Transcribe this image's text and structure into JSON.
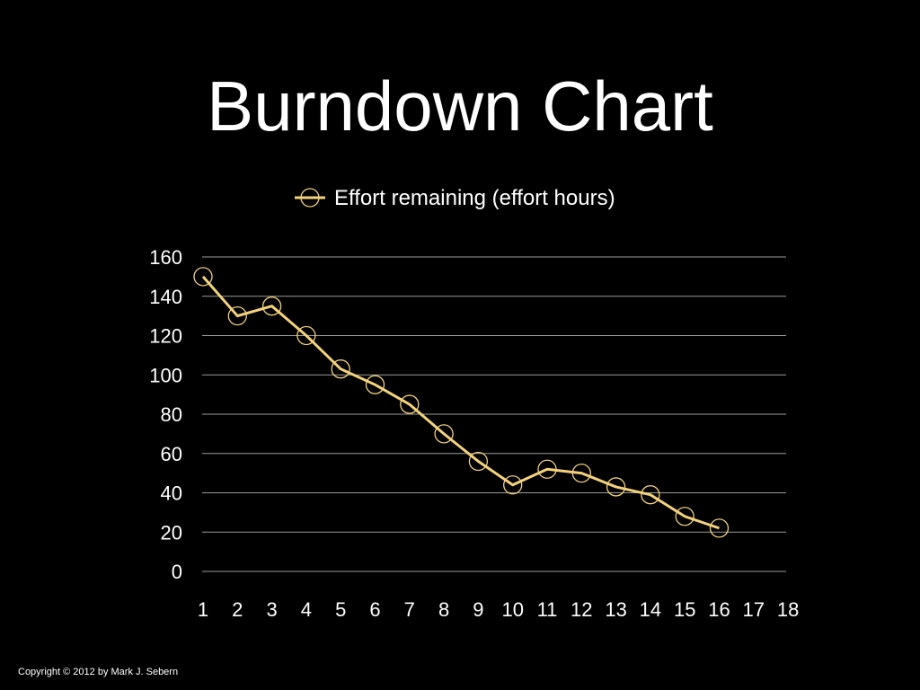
{
  "slide": {
    "title": "Burndown Chart",
    "copyright": "Copyright © 2012 by Mark J. Sebern"
  },
  "colors": {
    "background": "#000000",
    "text": "#ffffff",
    "gridline": "#9a9a9a",
    "series": "#f3d27c"
  },
  "chart_data": {
    "type": "line",
    "title": "",
    "xlabel": "",
    "ylabel": "",
    "x_categories": [
      "1",
      "2",
      "3",
      "4",
      "5",
      "6",
      "7",
      "8",
      "9",
      "10",
      "11",
      "12",
      "13",
      "14",
      "15",
      "16",
      "17",
      "18"
    ],
    "ylim": [
      0,
      160
    ],
    "y_ticks": [
      0,
      20,
      40,
      60,
      80,
      100,
      120,
      140,
      160
    ],
    "grid": true,
    "legend_position": "top",
    "series": [
      {
        "name": "Effort remaining (effort hours)",
        "marker": "open-circle",
        "values": [
          150,
          130,
          135,
          120,
          103,
          95,
          85,
          70,
          56,
          44,
          52,
          50,
          43,
          39,
          28,
          22
        ]
      }
    ]
  }
}
